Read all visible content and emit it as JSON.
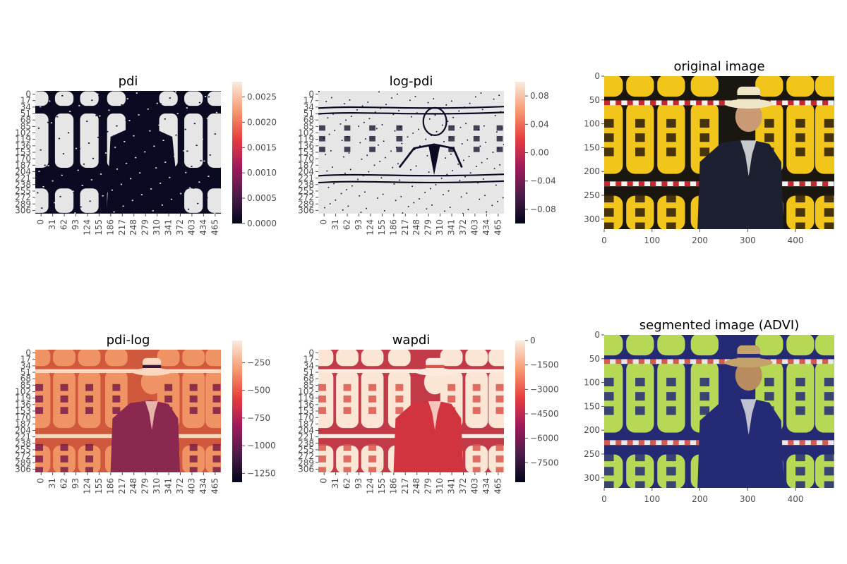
{
  "chart_data": [
    {
      "type": "heatmap",
      "title": "pdi",
      "xticks": [
        "0",
        "31",
        "62",
        "93",
        "124",
        "155",
        "186",
        "217",
        "248",
        "279",
        "310",
        "341",
        "372",
        "403",
        "434",
        "465"
      ],
      "yticks": [
        "0",
        "17",
        "34",
        "51",
        "68",
        "85",
        "102",
        "119",
        "136",
        "153",
        "170",
        "187",
        "204",
        "221",
        "238",
        "255",
        "272",
        "289",
        "306"
      ],
      "colorbar": {
        "ticks": [
          "0.0000",
          "0.0005",
          "0.0010",
          "0.0015",
          "0.0020",
          "0.0025"
        ],
        "vmin": 0.0,
        "vmax": 0.0028,
        "stops": [
          "#03051a",
          "#4c1d4b",
          "#a11a5b",
          "#e83f3f",
          "#f69c73",
          "#faebdd"
        ]
      },
      "palette": {
        "background": "#e6e6e6",
        "main": "#0a0a23"
      },
      "render": "pdi"
    },
    {
      "type": "heatmap",
      "title": "log-pdi",
      "xticks": [
        "0",
        "31",
        "62",
        "93",
        "124",
        "155",
        "186",
        "217",
        "248",
        "279",
        "310",
        "341",
        "372",
        "403",
        "434",
        "465"
      ],
      "yticks": [
        "0",
        "17",
        "34",
        "51",
        "68",
        "85",
        "102",
        "119",
        "136",
        "153",
        "170",
        "187",
        "204",
        "221",
        "238",
        "255",
        "272",
        "289",
        "306"
      ],
      "colorbar": {
        "ticks": [
          "0.08",
          "0.04",
          "0.00",
          "−0.04",
          "−0.08"
        ],
        "vmin": -0.1,
        "vmax": 0.1,
        "stops": [
          "#03051a",
          "#4c1d4b",
          "#a11a5b",
          "#e83f3f",
          "#f69c73",
          "#faebdd"
        ]
      },
      "palette": {
        "background": "#e6e6e6",
        "main": "#0a0a23"
      },
      "render": "logpdi"
    },
    {
      "type": "image",
      "title": "original image",
      "xticks": [
        "0",
        "100",
        "200",
        "300",
        "400"
      ],
      "yticks": [
        "0",
        "50",
        "100",
        "150",
        "200",
        "250",
        "300"
      ],
      "xlim": [
        0,
        481
      ],
      "ylim": [
        321,
        0
      ],
      "palette": {
        "lantern": "#f2c51a",
        "dark": "#1a1610",
        "suit": "#1c2030",
        "rope_red": "#c6262e",
        "rope_white": "#f2f2f2",
        "face": "#c99a74",
        "hat": "#efe6c8",
        "text": "#2a1a0a"
      },
      "render": "orig"
    },
    {
      "type": "heatmap",
      "title": "pdi-log",
      "xticks": [
        "0",
        "31",
        "62",
        "93",
        "124",
        "155",
        "186",
        "217",
        "248",
        "279",
        "310",
        "341",
        "372",
        "403",
        "434",
        "465"
      ],
      "yticks": [
        "0",
        "17",
        "34",
        "51",
        "68",
        "85",
        "102",
        "119",
        "136",
        "153",
        "170",
        "187",
        "204",
        "221",
        "238",
        "255",
        "272",
        "289",
        "306"
      ],
      "colorbar": {
        "ticks": [
          "−250",
          "−500",
          "−750",
          "−1000",
          "−1250"
        ],
        "vmin": -1330,
        "vmax": -50,
        "stops": [
          "#03051a",
          "#4c1d4b",
          "#a11a5b",
          "#e83f3f",
          "#f69c73",
          "#faebdd"
        ]
      },
      "palette": {
        "background": "#d0593d",
        "lantern": "#f09364",
        "suit": "#8a2850",
        "stripe": "#fbd7bd",
        "dark": "#3a1540",
        "text": "#7a1c48"
      },
      "render": "pdilog"
    },
    {
      "type": "heatmap",
      "title": "wapdi",
      "xticks": [
        "0",
        "31",
        "62",
        "93",
        "124",
        "155",
        "186",
        "217",
        "248",
        "279",
        "310",
        "341",
        "372",
        "403",
        "434",
        "465"
      ],
      "yticks": [
        "0",
        "17",
        "34",
        "51",
        "68",
        "85",
        "102",
        "119",
        "136",
        "153",
        "170",
        "187",
        "204",
        "221",
        "238",
        "255",
        "272",
        "289",
        "306"
      ],
      "colorbar": {
        "ticks": [
          "0",
          "−1500",
          "−3000",
          "−4500",
          "−6000",
          "−7500"
        ],
        "vmin": -8700,
        "vmax": 0,
        "stops": [
          "#03051a",
          "#4c1d4b",
          "#a11a5b",
          "#e83f3f",
          "#f69c73",
          "#faebdd"
        ]
      },
      "palette": {
        "background": "#c23a48",
        "lantern": "#fbe6d6",
        "suit": "#d2343f",
        "stripe": "#fde9dd",
        "text": "#d9564b"
      },
      "render": "wapdi"
    },
    {
      "type": "image",
      "title": "segmented image (ADVI)",
      "xticks": [
        "0",
        "100",
        "200",
        "300",
        "400"
      ],
      "yticks": [
        "0",
        "50",
        "100",
        "150",
        "200",
        "250",
        "300"
      ],
      "xlim": [
        0,
        481
      ],
      "ylim": [
        321,
        0
      ],
      "palette": {
        "lantern": "#b7d855",
        "dark": "#252a75",
        "suit": "#252a75",
        "rope_red": "#d65a4e",
        "rope_white": "#e8e8e8",
        "face": "#b88c5e",
        "hat": "#c4a36b",
        "text": "#252a75"
      },
      "render": "orig"
    }
  ]
}
